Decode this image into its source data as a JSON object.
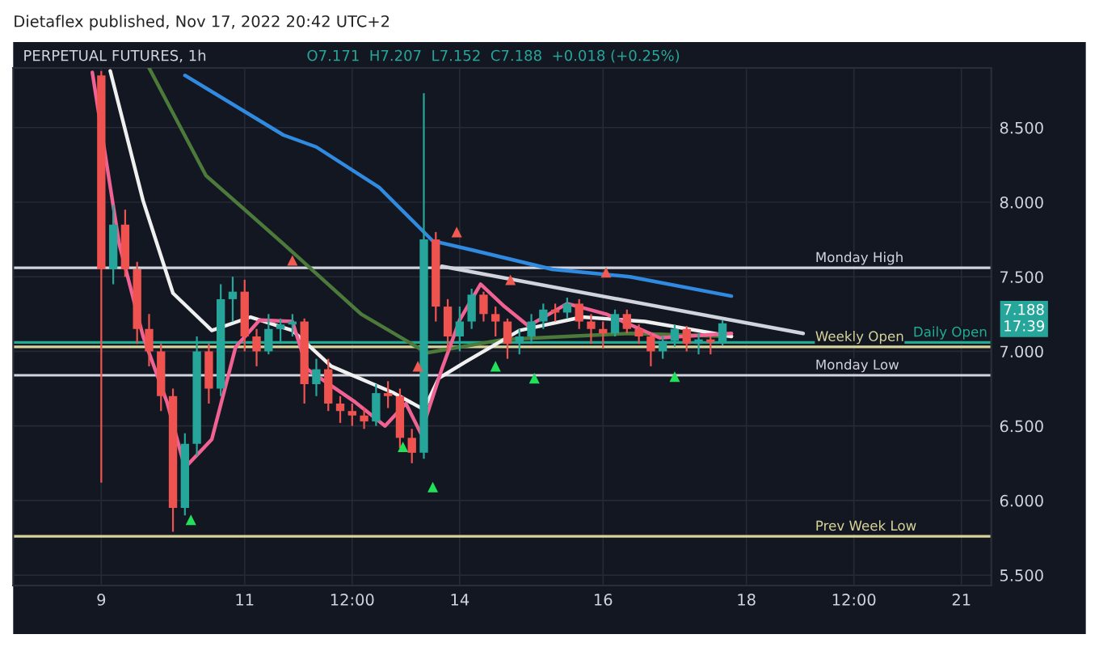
{
  "chart_data": {
    "type": "candlestick",
    "title": "PERPETUAL FUTURES, 1h",
    "subtitle": "O7.171  H7.207  L7.152  C7.188  +0.018 (+0.25%)",
    "annotations": [
      "Dietaflex published, Nov 17, 2022 20:42 UTC+2",
      "7.188\n17:39"
    ],
    "x": [
      "2022-11-09T00:00",
      "2022-11-09T04:00",
      "2022-11-09T08:00",
      "2022-11-09T12:00",
      "2022-11-09T16:00",
      "2022-11-09T20:00",
      "2022-11-10T00:00",
      "2022-11-10T04:00",
      "2022-11-10T08:00",
      "2022-11-10T12:00",
      "2022-11-10T16:00",
      "2022-11-10T20:00",
      "2022-11-11T00:00",
      "2022-11-11T04:00",
      "2022-11-11T08:00",
      "2022-11-11T12:00",
      "2022-11-11T16:00",
      "2022-11-11T20:00",
      "2022-11-12T00:00",
      "2022-11-12T04:00",
      "2022-11-12T08:00",
      "2022-11-12T12:00",
      "2022-11-12T16:00",
      "2022-11-12T20:00",
      "2022-11-13T00:00",
      "2022-11-13T04:00",
      "2022-11-13T08:00",
      "2022-11-13T12:00",
      "2022-11-13T16:00",
      "2022-11-13T20:00",
      "2022-11-14T00:00",
      "2022-11-14T04:00",
      "2022-11-14T08:00",
      "2022-11-14T12:00",
      "2022-11-14T16:00",
      "2022-11-14T20:00",
      "2022-11-15T00:00",
      "2022-11-15T04:00",
      "2022-11-15T08:00",
      "2022-11-15T12:00",
      "2022-11-15T16:00",
      "2022-11-15T20:00",
      "2022-11-16T00:00",
      "2022-11-16T04:00",
      "2022-11-16T08:00",
      "2022-11-16T12:00",
      "2022-11-16T16:00",
      "2022-11-16T20:00",
      "2022-11-17T00:00",
      "2022-11-17T04:00",
      "2022-11-17T08:00",
      "2022-11-17T12:00",
      "2022-11-17T16:00"
    ],
    "ohlc": [
      [
        8.85,
        8.88,
        6.12,
        7.55
      ],
      [
        7.55,
        7.98,
        7.45,
        7.85
      ],
      [
        7.85,
        7.95,
        7.5,
        7.55
      ],
      [
        7.55,
        7.6,
        7.05,
        7.15
      ],
      [
        7.15,
        7.25,
        6.9,
        7.0
      ],
      [
        7.0,
        7.05,
        6.6,
        6.7
      ],
      [
        6.7,
        6.75,
        5.79,
        5.95
      ],
      [
        5.95,
        6.45,
        5.9,
        6.38
      ],
      [
        6.38,
        7.1,
        6.3,
        7.0
      ],
      [
        7.0,
        7.05,
        6.65,
        6.75
      ],
      [
        6.75,
        7.45,
        6.7,
        7.35
      ],
      [
        7.35,
        7.5,
        7.2,
        7.4
      ],
      [
        7.4,
        7.48,
        7.0,
        7.1
      ],
      [
        7.1,
        7.15,
        6.9,
        7.0
      ],
      [
        7.0,
        7.25,
        6.98,
        7.15
      ],
      [
        7.15,
        7.22,
        7.05,
        7.18
      ],
      [
        7.18,
        7.25,
        7.1,
        7.2
      ],
      [
        7.2,
        7.22,
        6.65,
        6.78
      ],
      [
        6.78,
        6.95,
        6.7,
        6.88
      ],
      [
        6.88,
        6.95,
        6.6,
        6.65
      ],
      [
        6.65,
        6.7,
        6.52,
        6.6
      ],
      [
        6.6,
        6.65,
        6.5,
        6.57
      ],
      [
        6.57,
        6.62,
        6.48,
        6.53
      ],
      [
        6.53,
        6.78,
        6.5,
        6.72
      ],
      [
        6.72,
        6.8,
        6.62,
        6.7
      ],
      [
        6.7,
        6.75,
        6.35,
        6.42
      ],
      [
        6.42,
        6.48,
        6.25,
        6.32
      ],
      [
        6.32,
        8.73,
        6.28,
        7.75
      ],
      [
        7.75,
        7.8,
        7.2,
        7.3
      ],
      [
        7.3,
        7.35,
        7.0,
        7.1
      ],
      [
        7.1,
        7.3,
        7.0,
        7.2
      ],
      [
        7.2,
        7.42,
        7.15,
        7.38
      ],
      [
        7.38,
        7.4,
        7.2,
        7.25
      ],
      [
        7.25,
        7.3,
        7.1,
        7.2
      ],
      [
        7.2,
        7.22,
        6.95,
        7.05
      ],
      [
        7.05,
        7.15,
        6.98,
        7.1
      ],
      [
        7.1,
        7.25,
        7.05,
        7.2
      ],
      [
        7.2,
        7.32,
        7.15,
        7.28
      ],
      [
        7.28,
        7.32,
        7.2,
        7.26
      ],
      [
        7.26,
        7.36,
        7.22,
        7.32
      ],
      [
        7.32,
        7.35,
        7.15,
        7.2
      ],
      [
        7.2,
        7.25,
        7.05,
        7.15
      ],
      [
        7.15,
        7.2,
        7.02,
        7.12
      ],
      [
        7.12,
        7.28,
        7.1,
        7.25
      ],
      [
        7.25,
        7.28,
        7.12,
        7.15
      ],
      [
        7.15,
        7.18,
        7.05,
        7.1
      ],
      [
        7.1,
        7.12,
        6.9,
        7.0
      ],
      [
        7.0,
        7.1,
        6.95,
        7.07
      ],
      [
        7.07,
        7.18,
        7.03,
        7.15
      ],
      [
        7.15,
        7.17,
        7.0,
        7.05
      ],
      [
        7.05,
        7.12,
        6.98,
        7.08
      ],
      [
        7.08,
        7.1,
        6.98,
        7.06
      ],
      [
        7.06,
        7.21,
        7.04,
        7.188
      ]
    ],
    "series": [
      {
        "type": "line",
        "color": "#2f8ae0",
        "x": [
          "2022-11-10T04:00",
          "2022-11-11T13:00",
          "2022-11-12T00:00",
          "2022-11-12T21:00",
          "2022-11-13T15:00",
          "2022-11-14T04:00",
          "2022-11-15T07:00",
          "2022-11-16T09:00",
          "2022-11-17T19:00"
        ],
        "values": [
          8.85,
          8.45,
          8.37,
          8.1,
          7.74,
          7.68,
          7.55,
          7.5,
          7.37
        ]
      },
      {
        "type": "line",
        "color": "#4c7a3a",
        "x": [
          "2022-11-09T16:00",
          "2022-11-10T11:00",
          "2022-11-11T13:00",
          "2022-11-12T15:00",
          "2022-11-13T13:00",
          "2022-11-14T15:00",
          "2022-11-16T09:00",
          "2022-11-17T19:00"
        ],
        "values": [
          8.9,
          8.18,
          7.72,
          7.25,
          6.99,
          7.08,
          7.12,
          7.1
        ]
      },
      {
        "type": "line",
        "color": "#f0f0f0",
        "x": [
          "2022-11-09T03:00",
          "2022-11-09T14:00",
          "2022-11-10T00:00",
          "2022-11-10T13:00",
          "2022-11-11T02:00",
          "2022-11-11T16:00",
          "2022-11-12T05:00",
          "2022-11-13T02:00",
          "2022-11-13T12:00",
          "2022-11-13T17:00",
          "2022-11-14T02:00",
          "2022-11-14T20:00",
          "2022-11-15T17:00",
          "2022-11-16T14:00",
          "2022-11-17T19:00"
        ],
        "values": [
          8.88,
          8.01,
          7.39,
          7.14,
          7.23,
          7.14,
          6.9,
          6.72,
          6.61,
          6.82,
          6.93,
          7.14,
          7.23,
          7.2,
          7.1
        ]
      },
      {
        "type": "line",
        "color": "#f06292",
        "x": [
          "2022-11-08T21:00",
          "2022-11-09T06:00",
          "2022-11-09T14:00",
          "2022-11-09T22:00",
          "2022-11-10T04:00",
          "2022-11-10T13:00",
          "2022-11-10T21:00",
          "2022-11-11T05:00",
          "2022-11-11T16:00",
          "2022-11-11T21:00",
          "2022-11-12T13:00",
          "2022-11-12T23:00",
          "2022-11-13T06:00",
          "2022-11-13T11:00",
          "2022-11-13T18:00",
          "2022-11-14T00:00",
          "2022-11-14T07:00",
          "2022-11-14T15:00",
          "2022-11-14T23:00",
          "2022-11-15T12:00",
          "2022-11-16T01:00",
          "2022-11-16T19:00",
          "2022-11-17T19:00"
        ],
        "values": [
          8.87,
          7.72,
          7.1,
          6.66,
          6.22,
          6.41,
          7.03,
          7.21,
          7.2,
          6.88,
          6.66,
          6.5,
          6.65,
          6.45,
          6.88,
          7.21,
          7.45,
          7.3,
          7.17,
          7.32,
          7.25,
          7.09,
          7.12
        ]
      },
      {
        "type": "line",
        "color": "#d1d4dc",
        "x": [
          "2022-11-13T18:00",
          "2022-11-18T19:00"
        ],
        "values": [
          7.57,
          7.12
        ]
      },
      {
        "type": "scatter",
        "color": "#22e05a",
        "marker": "triangle",
        "x": [
          "2022-11-10T06:00",
          "2022-11-13T05:00",
          "2022-11-13T15:00",
          "2022-11-14T12:00",
          "2022-11-15T01:00",
          "2022-11-17T00:00"
        ],
        "values": [
          5.87,
          6.36,
          6.09,
          6.9,
          6.82,
          6.83
        ]
      },
      {
        "type": "scatter",
        "color": "#f05a50",
        "marker": "triangle",
        "x": [
          "2022-11-11T16:00",
          "2022-11-13T10:00",
          "2022-11-13T23:00",
          "2022-11-14T17:00",
          "2022-11-16T01:00"
        ],
        "values": [
          7.61,
          6.9,
          7.8,
          7.48,
          7.53
        ]
      }
    ],
    "ref_lines": [
      {
        "axis": "y",
        "value": 7.56,
        "label": "Monday High",
        "color": "#d1d4dc"
      },
      {
        "axis": "y",
        "value": 7.06,
        "label": "Daily Open",
        "color": "#22ab94"
      },
      {
        "axis": "y",
        "value": 7.03,
        "label": "Weekly Open",
        "color": "#d8d49a"
      },
      {
        "axis": "y",
        "value": 6.84,
        "label": "Monday Low",
        "color": "#d1d4dc"
      },
      {
        "axis": "y",
        "value": 5.76,
        "label": "Prev Week Low",
        "color": "#d8d49a"
      }
    ],
    "xlim": [
      "2022-11-07T18:30",
      "2022-11-21T10:00"
    ],
    "xticks": [
      {
        "value": "2022-11-09",
        "label": "9"
      },
      {
        "value": "2022-11-11",
        "label": "11"
      },
      {
        "value": "2022-11-12T12:00",
        "label": "12:00"
      },
      {
        "value": "2022-11-14",
        "label": "14"
      },
      {
        "value": "2022-11-16",
        "label": "16"
      },
      {
        "value": "2022-11-18",
        "label": "18"
      },
      {
        "value": "2022-11-19T12:00",
        "label": "12:00"
      },
      {
        "value": "2022-11-21",
        "label": "21"
      }
    ],
    "ylim": [
      5.43,
      8.9
    ],
    "yticks": [
      {
        "value": 5.5,
        "label": "5.500"
      },
      {
        "value": 6.0,
        "label": "6.000"
      },
      {
        "value": 6.5,
        "label": "6.500"
      },
      {
        "value": 7.0,
        "label": "7.000"
      },
      {
        "value": 7.5,
        "label": "7.500"
      },
      {
        "value": 8.0,
        "label": "8.000"
      },
      {
        "value": 8.5,
        "label": "8.500"
      }
    ],
    "grid": true
  }
}
